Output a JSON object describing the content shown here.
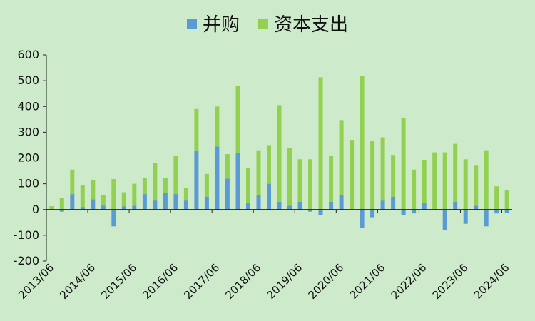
{
  "chart_data": {
    "type": "bar",
    "stacked": true,
    "legend_position": "top-center",
    "grid": false,
    "ylim": [
      -200,
      600
    ],
    "yticks": [
      -200,
      -100,
      0,
      100,
      200,
      300,
      400,
      500,
      600
    ],
    "x": [
      "2013/06",
      "2013/09",
      "2013/12",
      "2014/03",
      "2014/06",
      "2014/09",
      "2014/12",
      "2015/03",
      "2015/06",
      "2015/09",
      "2015/12",
      "2016/03",
      "2016/06",
      "2016/09",
      "2016/12",
      "2017/03",
      "2017/06",
      "2017/09",
      "2017/12",
      "2018/03",
      "2018/06",
      "2018/09",
      "2018/12",
      "2019/03",
      "2019/06",
      "2019/09",
      "2019/12",
      "2020/03",
      "2020/06",
      "2020/09",
      "2020/12",
      "2021/03",
      "2021/06",
      "2021/09",
      "2021/12",
      "2022/03",
      "2022/06",
      "2022/09",
      "2022/12",
      "2023/03",
      "2023/06",
      "2023/09",
      "2023/12",
      "2024/03",
      "2024/06"
    ],
    "xtick_labels": [
      "2013/06",
      "2014/06",
      "2015/06",
      "2016/06",
      "2017/06",
      "2018/06",
      "2019/06",
      "2020/06",
      "2021/06",
      "2022/06",
      "2023/06",
      "2024/06"
    ],
    "series": [
      {
        "name": "并购",
        "color": "#5b9bd5",
        "values": [
          0,
          -8,
          60,
          10,
          40,
          15,
          -65,
          12,
          15,
          60,
          35,
          65,
          60,
          35,
          230,
          50,
          245,
          120,
          220,
          25,
          55,
          100,
          30,
          15,
          30,
          -8,
          -20,
          30,
          55,
          0,
          -72,
          -30,
          35,
          50,
          -20,
          -15,
          25,
          0,
          -80,
          30,
          -55,
          15,
          -65,
          -15,
          -12
        ]
      },
      {
        "name": "资本支出",
        "color": "#92d050",
        "values": [
          13,
          45,
          95,
          85,
          75,
          40,
          118,
          55,
          85,
          62,
          145,
          58,
          150,
          50,
          160,
          88,
          155,
          95,
          260,
          135,
          175,
          150,
          375,
          225,
          165,
          195,
          513,
          178,
          292,
          270,
          518,
          265,
          245,
          162,
          355,
          155,
          168,
          222,
          222,
          225,
          195,
          155,
          230,
          90,
          75
        ]
      }
    ]
  }
}
